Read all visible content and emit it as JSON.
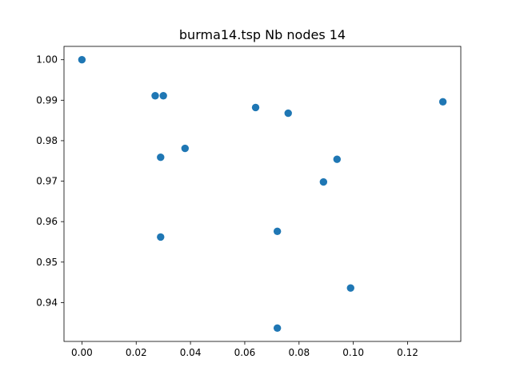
{
  "chart_data": {
    "type": "scatter",
    "title": "burma14.tsp Nb nodes 14",
    "xlabel": "",
    "ylabel": "",
    "xlim": [
      -0.0066,
      0.1396
    ],
    "ylim": [
      0.9304,
      1.0033
    ],
    "x_ticks": [
      0.0,
      0.02,
      0.04,
      0.06,
      0.08,
      0.1,
      0.12
    ],
    "x_tick_labels": [
      "0.00",
      "0.02",
      "0.04",
      "0.06",
      "0.08",
      "0.10",
      "0.12"
    ],
    "y_ticks": [
      0.94,
      0.95,
      0.96,
      0.97,
      0.98,
      0.99,
      1.0
    ],
    "y_tick_labels": [
      "0.94",
      "0.95",
      "0.96",
      "0.97",
      "0.98",
      "0.99",
      "1.00"
    ],
    "grid": false,
    "marker_color": "#1f77b4",
    "points": [
      {
        "x": 0.0,
        "y": 1.0
      },
      {
        "x": 0.027,
        "y": 0.9911
      },
      {
        "x": 0.03,
        "y": 0.9911
      },
      {
        "x": 0.064,
        "y": 0.9882
      },
      {
        "x": 0.076,
        "y": 0.9868
      },
      {
        "x": 0.133,
        "y": 0.9896
      },
      {
        "x": 0.029,
        "y": 0.9759
      },
      {
        "x": 0.038,
        "y": 0.9781
      },
      {
        "x": 0.094,
        "y": 0.9754
      },
      {
        "x": 0.089,
        "y": 0.9698
      },
      {
        "x": 0.029,
        "y": 0.9562
      },
      {
        "x": 0.072,
        "y": 0.9576
      },
      {
        "x": 0.099,
        "y": 0.9436
      },
      {
        "x": 0.072,
        "y": 0.9337
      }
    ]
  }
}
